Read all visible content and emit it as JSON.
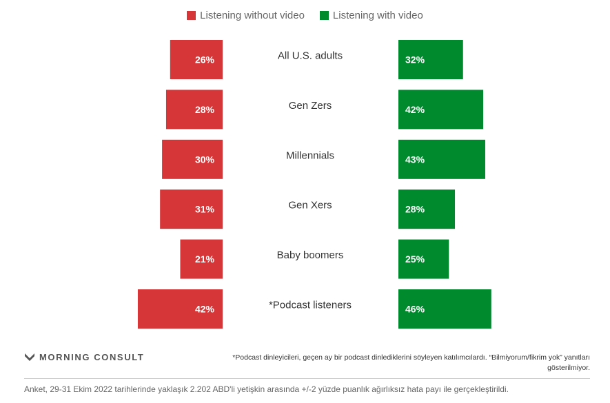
{
  "legend": [
    {
      "label": "Listening without video",
      "color": "#d63638"
    },
    {
      "label": "Listening with video",
      "color": "#008a2e"
    }
  ],
  "chart_data": {
    "type": "bar",
    "orientation": "horizontal-diverging",
    "categories": [
      "All U.S. adults",
      "Gen Zers",
      "Millennials",
      "Gen Xers",
      "Baby boomers",
      "*Podcast listeners"
    ],
    "series": [
      {
        "name": "Listening without video",
        "color": "#d63638",
        "values": [
          26,
          28,
          30,
          31,
          21,
          42
        ],
        "labels": [
          "26%",
          "28%",
          "30%",
          "31%",
          "21%",
          "42%"
        ]
      },
      {
        "name": "Listening with video",
        "color": "#008a2e",
        "values": [
          32,
          42,
          43,
          28,
          25,
          46
        ],
        "labels": [
          "32%",
          "42%",
          "43%",
          "28%",
          "25%",
          "46%"
        ]
      }
    ],
    "unit": "%"
  },
  "footer": {
    "logo_text": "MORNING CONSULT",
    "footnote": "*Podcast dinleyicileri, geçen ay bir podcast dinlediklerini söyleyen katılımcılardı. “Bilmiyorum/fikrim yok” yanıtları gösterilmiyor.",
    "source": "Anket, 29-31 Ekim 2022 tarihlerinde yaklaşık 2.202 ABD'li yetişkin arasında +/-2 yüzde puanlık ağırlıksız hata payı ile gerçekleştirildi."
  }
}
